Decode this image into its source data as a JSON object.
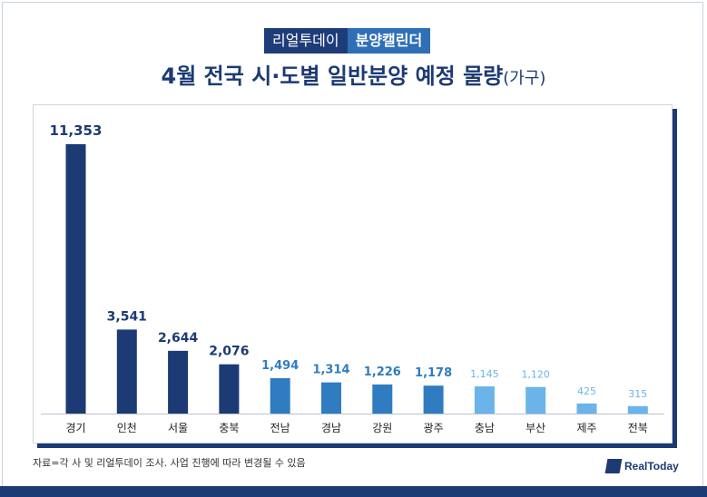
{
  "header": {
    "badge_left": "리얼투데이",
    "badge_right": "분양캘린더",
    "title": "4월 전국 시·도별 일반분양 예정 물량",
    "title_unit": "(가구)"
  },
  "chart_data": {
    "type": "bar",
    "title": "4월 전국 시·도별 일반분양 예정 물량(가구)",
    "xlabel": "",
    "ylabel": "",
    "ylim": [
      0,
      12500
    ],
    "grid": false,
    "categories": [
      "경기",
      "인천",
      "서울",
      "충북",
      "전남",
      "경남",
      "강원",
      "광주",
      "충남",
      "부산",
      "제주",
      "전북"
    ],
    "values": [
      11353,
      3541,
      2644,
      2076,
      1494,
      1314,
      1226,
      1178,
      1145,
      1120,
      425,
      315
    ],
    "value_labels": [
      "11,353",
      "3,541",
      "2,644",
      "2,076",
      "1,494",
      "1,314",
      "1,226",
      "1,178",
      "1,145",
      "1,120",
      "425",
      "315"
    ],
    "bar_colors": [
      "#1c3a73",
      "#1c3a73",
      "#1c3a73",
      "#1c3a73",
      "#2f7cc1",
      "#2f7cc1",
      "#2f7cc1",
      "#2f7cc1",
      "#6ab4ea",
      "#6ab4ea",
      "#6ab4ea",
      "#6ab4ea"
    ],
    "label_colors": [
      "#1c3a73",
      "#1c3a73",
      "#1c3a73",
      "#1c3a73",
      "#2f7cc1",
      "#2f7cc1",
      "#2f7cc1",
      "#2f7cc1",
      "#6ab4ea",
      "#6ab4ea",
      "#6ab4ea",
      "#6ab4ea"
    ]
  },
  "footnote": "자료=각 사 및 리얼투데이 조사. 사업 진행에 따라 변경될 수 있음",
  "logo": {
    "text": "RealToday"
  },
  "colors": {
    "navy": "#1c3a73",
    "mid_blue": "#2f7cc1",
    "light_blue": "#6ab4ea"
  }
}
